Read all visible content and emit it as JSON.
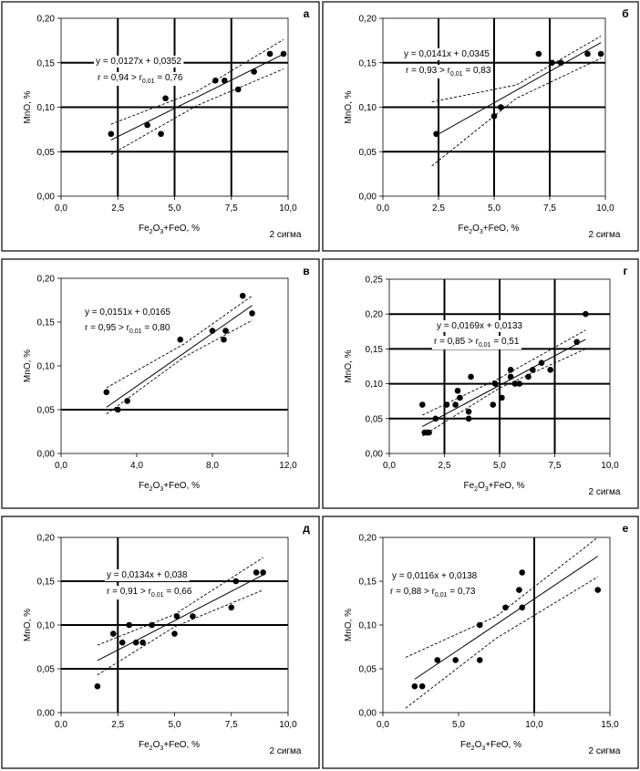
{
  "chart_data": [
    {
      "type": "scatter",
      "letter": "а",
      "title": "",
      "xlabel": "Fe2O3+FeO, %",
      "ylabel": "MnO, %",
      "sigma_label": "2 сигма",
      "equation": "y = 0,0127x + 0,0352",
      "r_text": {
        "pre": "r = 0,94 > r",
        "sub": "0,01",
        "post": " = 0,76"
      },
      "xlim": [
        0,
        10
      ],
      "ylim": [
        0,
        0.2
      ],
      "xticks": [
        0,
        2.5,
        5,
        7.5,
        10
      ],
      "xtick_labels": [
        "0,0",
        "2,5",
        "5,0",
        "7,5",
        "10,0"
      ],
      "yticks": [
        0,
        0.05,
        0.1,
        0.15,
        0.2
      ],
      "ytick_labels": [
        "0,00",
        "0,05",
        "0,10",
        "0,15",
        "0,20"
      ],
      "ref_lines_x": [
        2.5,
        5,
        7.5
      ],
      "ref_lines_y": [
        0.05,
        0.1,
        0.15
      ],
      "points": [
        [
          2.2,
          0.07
        ],
        [
          3.8,
          0.08
        ],
        [
          4.4,
          0.07
        ],
        [
          4.6,
          0.11
        ],
        [
          6.8,
          0.13
        ],
        [
          7.2,
          0.13
        ],
        [
          7.8,
          0.12
        ],
        [
          8.5,
          0.14
        ],
        [
          9.2,
          0.16
        ],
        [
          9.8,
          0.16
        ]
      ],
      "fit": {
        "slope": 0.0127,
        "intercept": 0.0352,
        "x_range": [
          2.2,
          9.8
        ]
      },
      "band_upper": [
        [
          2.2,
          0.081
        ],
        [
          6.0,
          0.118
        ],
        [
          9.8,
          0.176
        ]
      ],
      "band_lower": [
        [
          2.2,
          0.047
        ],
        [
          6.0,
          0.102
        ],
        [
          9.8,
          0.143
        ]
      ]
    },
    {
      "type": "scatter",
      "letter": "б",
      "title": "",
      "xlabel": "Fe2O3+FeO, %",
      "ylabel": "MnO, %",
      "sigma_label": "2 сигма",
      "equation": "y = 0,0141x + 0,0345",
      "r_text": {
        "pre": "r = 0,93 > r",
        "sub": "0,01",
        "post": " = 0,83"
      },
      "xlim": [
        0,
        10
      ],
      "ylim": [
        0,
        0.2
      ],
      "xticks": [
        0,
        2.5,
        5,
        7.5,
        10
      ],
      "xtick_labels": [
        "0,0",
        "2,5",
        "5,0",
        "7,5",
        "10,0"
      ],
      "yticks": [
        0,
        0.05,
        0.1,
        0.15,
        0.2
      ],
      "ytick_labels": [
        "0,00",
        "0,05",
        "0,10",
        "0,15",
        "0,20"
      ],
      "ref_lines_x": [
        2.5,
        5,
        7.5
      ],
      "ref_lines_y": [
        0.05,
        0.1,
        0.15
      ],
      "points": [
        [
          2.4,
          0.07
        ],
        [
          5.0,
          0.09
        ],
        [
          5.3,
          0.1
        ],
        [
          7.0,
          0.16
        ],
        [
          7.6,
          0.15
        ],
        [
          8.0,
          0.15
        ],
        [
          9.2,
          0.16
        ],
        [
          9.8,
          0.16
        ]
      ],
      "fit": {
        "slope": 0.0141,
        "intercept": 0.0345,
        "x_range": [
          2.4,
          9.8
        ]
      },
      "band_upper": [
        [
          2.2,
          0.106
        ],
        [
          6.0,
          0.125
        ],
        [
          9.8,
          0.18
        ]
      ],
      "band_lower": [
        [
          2.2,
          0.034
        ],
        [
          6.0,
          0.11
        ],
        [
          9.8,
          0.155
        ]
      ]
    },
    {
      "type": "scatter",
      "letter": "в",
      "title": "",
      "xlabel": "Fe2O3+FeO, %",
      "ylabel": "MnO, %",
      "sigma_label": "",
      "equation": "y = 0,0151x + 0,0165",
      "r_text": {
        "pre": "r = 0,95 > r",
        "sub": "0,01",
        "post": " = 0,80"
      },
      "xlim": [
        0,
        12
      ],
      "ylim": [
        0,
        0.2
      ],
      "xticks": [
        0,
        4,
        8,
        12
      ],
      "xtick_labels": [
        "0,0",
        "4,0",
        "8,0",
        "12,0"
      ],
      "yticks": [
        0,
        0.05,
        0.1,
        0.15,
        0.2
      ],
      "ytick_labels": [
        "0,00",
        "0,05",
        "0,10",
        "0,15",
        "0,20"
      ],
      "ref_lines_x": [],
      "ref_lines_y": [
        0.05
      ],
      "points": [
        [
          2.4,
          0.07
        ],
        [
          3.0,
          0.05
        ],
        [
          3.5,
          0.06
        ],
        [
          6.3,
          0.13
        ],
        [
          8.0,
          0.14
        ],
        [
          8.6,
          0.13
        ],
        [
          8.7,
          0.14
        ],
        [
          9.6,
          0.18
        ],
        [
          10.1,
          0.16
        ]
      ],
      "fit": {
        "slope": 0.0151,
        "intercept": 0.0165,
        "x_range": [
          2.4,
          10.1
        ]
      },
      "band_upper": [
        [
          2.4,
          0.075
        ],
        [
          6.5,
          0.125
        ],
        [
          10.1,
          0.18
        ]
      ],
      "band_lower": [
        [
          2.4,
          0.045
        ],
        [
          6.5,
          0.11
        ],
        [
          10.1,
          0.152
        ]
      ]
    },
    {
      "type": "scatter",
      "letter": "г",
      "title": "",
      "xlabel": "Fe2O3+FeO, %",
      "ylabel": "MnO, %",
      "sigma_label": "2 сигма",
      "equation": "y = 0,0169x + 0,0133",
      "r_text": {
        "pre": "r = 0,85 > r",
        "sub": "0,01",
        "post": " = 0,51"
      },
      "xlim": [
        0,
        10
      ],
      "ylim": [
        0,
        0.25
      ],
      "xticks": [
        0,
        2.5,
        5,
        7.5,
        10
      ],
      "xtick_labels": [
        "0,0",
        "2,5",
        "5,0",
        "7,5",
        "10,0"
      ],
      "yticks": [
        0,
        0.05,
        0.1,
        0.15,
        0.2,
        0.25
      ],
      "ytick_labels": [
        "0,00",
        "0,05",
        "0,10",
        "0,15",
        "0,20",
        "0,25"
      ],
      "ref_lines_x": [
        2.5,
        5,
        7.5
      ],
      "ref_lines_y": [
        0.05,
        0.1,
        0.15,
        0.2
      ],
      "points": [
        [
          1.5,
          0.07
        ],
        [
          1.6,
          0.03
        ],
        [
          1.7,
          0.03
        ],
        [
          1.8,
          0.03
        ],
        [
          2.1,
          0.05
        ],
        [
          2.6,
          0.07
        ],
        [
          3.0,
          0.07
        ],
        [
          3.2,
          0.08
        ],
        [
          3.1,
          0.09
        ],
        [
          3.6,
          0.05
        ],
        [
          3.6,
          0.06
        ],
        [
          3.7,
          0.11
        ],
        [
          4.7,
          0.07
        ],
        [
          4.8,
          0.1
        ],
        [
          5.1,
          0.08
        ],
        [
          5.5,
          0.11
        ],
        [
          5.5,
          0.12
        ],
        [
          5.7,
          0.1
        ],
        [
          5.9,
          0.1
        ],
        [
          6.3,
          0.11
        ],
        [
          6.5,
          0.12
        ],
        [
          6.9,
          0.13
        ],
        [
          7.3,
          0.12
        ],
        [
          8.5,
          0.16
        ],
        [
          8.9,
          0.2
        ]
      ],
      "fit": {
        "slope": 0.0169,
        "intercept": 0.0133,
        "x_range": [
          1.5,
          8.9
        ]
      },
      "band_upper": [
        [
          1.5,
          0.055
        ],
        [
          5.0,
          0.108
        ],
        [
          8.9,
          0.177
        ]
      ],
      "band_lower": [
        [
          1.5,
          0.025
        ],
        [
          5.0,
          0.094
        ],
        [
          8.9,
          0.15
        ]
      ]
    },
    {
      "type": "scatter",
      "letter": "д",
      "title": "",
      "xlabel": "Fe2O3+FeO, %",
      "ylabel": "MnO, %",
      "sigma_label": "2 сигма",
      "equation": "y = 0,0134x + 0,038",
      "r_text": {
        "pre": "r = 0,91 > r",
        "sub": "0,01",
        "post": " = 0,66"
      },
      "xlim": [
        0,
        10
      ],
      "ylim": [
        0,
        0.2
      ],
      "xticks": [
        0,
        2.5,
        5,
        7.5,
        10
      ],
      "xtick_labels": [
        "0,0",
        "2,5",
        "5,0",
        "7,5",
        "10,0"
      ],
      "yticks": [
        0,
        0.05,
        0.1,
        0.15,
        0.2
      ],
      "ytick_labels": [
        "0,00",
        "0,05",
        "0,10",
        "0,15",
        "0,20"
      ],
      "ref_lines_x": [
        2.5
      ],
      "ref_lines_y": [
        0.05,
        0.1,
        0.15
      ],
      "points": [
        [
          1.6,
          0.03
        ],
        [
          2.3,
          0.09
        ],
        [
          2.7,
          0.08
        ],
        [
          3.0,
          0.1
        ],
        [
          3.3,
          0.08
        ],
        [
          3.6,
          0.08
        ],
        [
          4.0,
          0.1
        ],
        [
          5.0,
          0.09
        ],
        [
          5.1,
          0.11
        ],
        [
          5.8,
          0.11
        ],
        [
          7.5,
          0.12
        ],
        [
          7.7,
          0.15
        ],
        [
          8.6,
          0.16
        ],
        [
          8.9,
          0.16
        ]
      ],
      "fit": {
        "slope": 0.0134,
        "intercept": 0.038,
        "x_range": [
          1.6,
          8.9
        ]
      },
      "band_upper": [
        [
          1.6,
          0.077
        ],
        [
          5.0,
          0.112
        ],
        [
          8.9,
          0.177
        ]
      ],
      "band_lower": [
        [
          1.6,
          0.043
        ],
        [
          5.0,
          0.098
        ],
        [
          8.9,
          0.14
        ]
      ]
    },
    {
      "type": "scatter",
      "letter": "е",
      "title": "",
      "xlabel": "Fe2O3+FeO, %",
      "ylabel": "MnO, %",
      "sigma_label": "2 сигма",
      "equation": "y = 0,0116x + 0,0138",
      "r_text": {
        "pre": "r = 0,88 > r",
        "sub": "0,01",
        "post": " = 0,73"
      },
      "xlim": [
        0,
        15
      ],
      "ylim": [
        0,
        0.2
      ],
      "xticks": [
        0,
        5,
        10,
        15
      ],
      "xtick_labels": [
        "0,0",
        "5,0",
        "10,0",
        "15,0"
      ],
      "yticks": [
        0,
        0.05,
        0.1,
        0.15,
        0.2
      ],
      "ytick_labels": [
        "0,00",
        "0,05",
        "0,10",
        "0,15",
        "0,20"
      ],
      "ref_lines_x": [
        10
      ],
      "ref_lines_y": [],
      "points": [
        [
          2.1,
          0.03
        ],
        [
          2.6,
          0.03
        ],
        [
          3.6,
          0.06
        ],
        [
          4.8,
          0.06
        ],
        [
          6.4,
          0.06
        ],
        [
          6.4,
          0.1
        ],
        [
          8.1,
          0.12
        ],
        [
          9.0,
          0.14
        ],
        [
          9.2,
          0.16
        ],
        [
          9.2,
          0.12
        ],
        [
          14.2,
          0.14
        ]
      ],
      "fit": {
        "slope": 0.0116,
        "intercept": 0.0138,
        "x_range": [
          2.1,
          14.2
        ]
      },
      "band_upper": [
        [
          1.5,
          0.063
        ],
        [
          7.5,
          0.11
        ],
        [
          14.2,
          0.2
        ]
      ],
      "band_lower": [
        [
          1.5,
          0.005
        ],
        [
          7.5,
          0.085
        ],
        [
          14.2,
          0.155
        ]
      ]
    }
  ]
}
